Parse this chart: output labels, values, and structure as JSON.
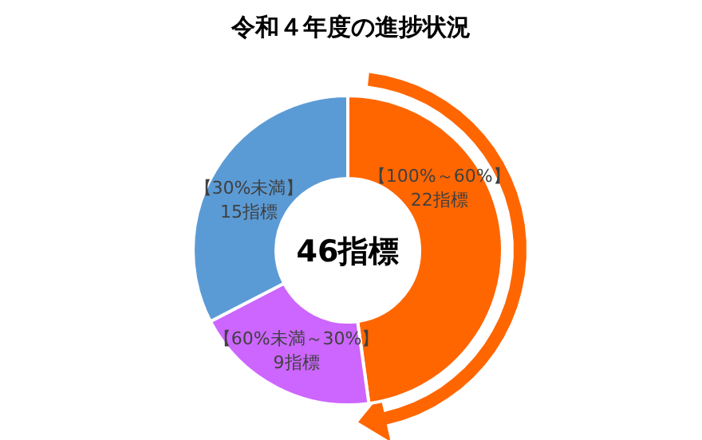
{
  "chart_data": {
    "type": "donut",
    "title": "令和４年度の進捗状況",
    "categories": [
      "【100%～60%】",
      "【60%未満～30%】",
      "【30%未満】"
    ],
    "values": [
      22,
      9,
      15
    ],
    "colors": [
      "#ff6600",
      "#cc66ff",
      "#5b9bd5"
    ],
    "value_labels": [
      "22指標",
      "9指標",
      "15指標"
    ],
    "annotations": [
      "46指標"
    ]
  }
}
